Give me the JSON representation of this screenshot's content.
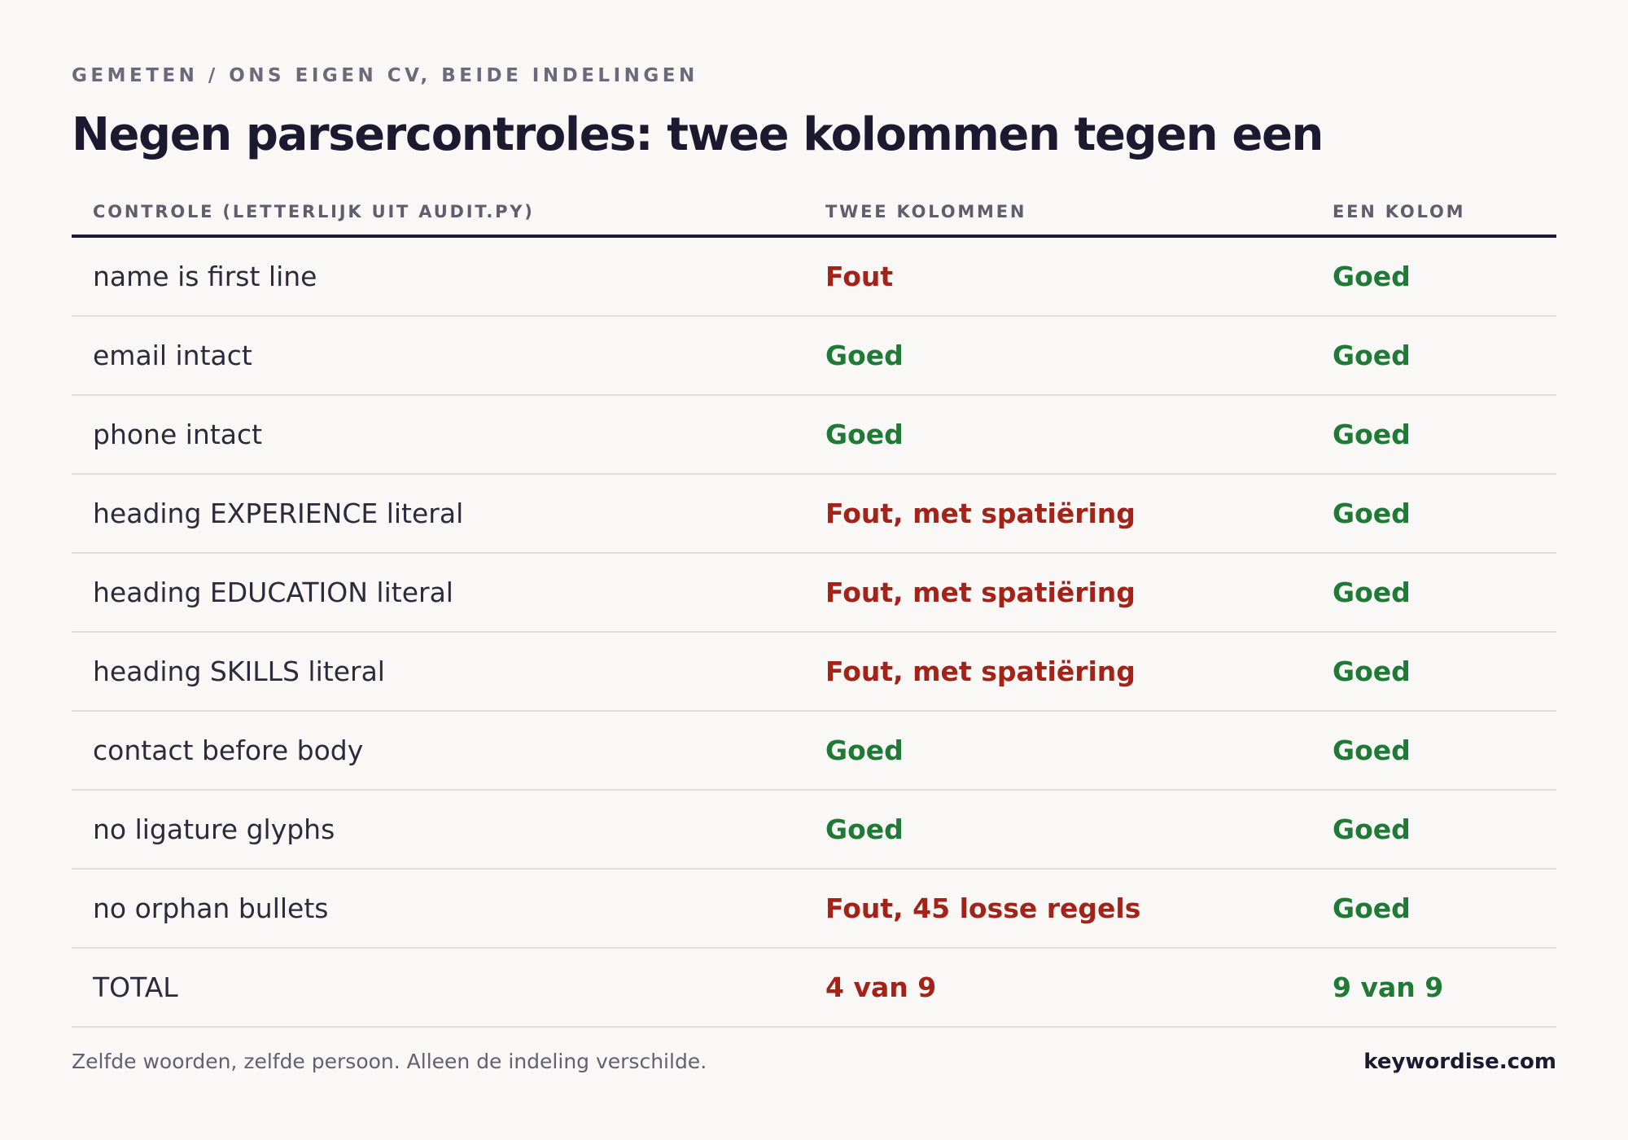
{
  "eyebrow": "GEMETEN / ONS EIGEN CV, BEIDE INDELINGEN",
  "title": "Negen parsercontroles: twee kolommen tegen een",
  "table": {
    "headers": [
      "CONTROLE (LETTERLIJK UIT AUDIT.PY)",
      "TWEE KOLOMMEN",
      "EEN KOLOM"
    ],
    "rows": [
      {
        "check": "name is first line",
        "two_columns": "Fout",
        "one_column": "Goed"
      },
      {
        "check": "email intact",
        "two_columns": "Goed",
        "one_column": "Goed"
      },
      {
        "check": "phone intact",
        "two_columns": "Goed",
        "one_column": "Goed"
      },
      {
        "check": "heading EXPERIENCE literal",
        "two_columns": "Fout, met spatiëring",
        "one_column": "Goed"
      },
      {
        "check": "heading EDUCATION literal",
        "two_columns": "Fout, met spatiëring",
        "one_column": "Goed"
      },
      {
        "check": "heading SKILLS literal",
        "two_columns": "Fout, met spatiëring",
        "one_column": "Goed"
      },
      {
        "check": "contact before body",
        "two_columns": "Goed",
        "one_column": "Goed"
      },
      {
        "check": "no ligature glyphs",
        "two_columns": "Goed",
        "one_column": "Goed"
      },
      {
        "check": "no orphan bullets",
        "two_columns": "Fout, 45 losse regels",
        "one_column": "Goed"
      },
      {
        "check": "TOTAL",
        "two_columns": "4 van 9",
        "one_column": "9 van 9"
      }
    ]
  },
  "colors": {
    "fail": "#a32319",
    "pass": "#1f7a35"
  },
  "footnote": "Zelfde woorden, zelfde persoon. Alleen de indeling verschilde.",
  "brand": "keywordise.com"
}
